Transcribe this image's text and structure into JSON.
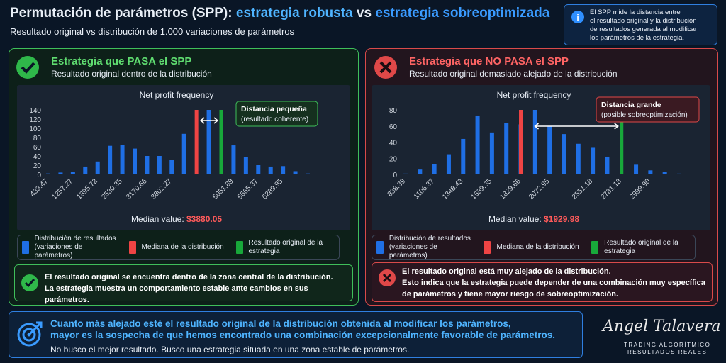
{
  "header": {
    "title_start": "Permutación de parámetros (SPP):",
    "title_robust": "estrategia robusta",
    "title_vs": "vs",
    "title_over": "estrategia sobreoptimizada",
    "subtitle": "Resultado original vs distribución de 1.000 variaciones de parámetros"
  },
  "info": [
    "El SPP mide la distancia entre",
    "el resultado original y la distribución",
    "de resultados generada al modificar",
    "los parámetros de la estrategia."
  ],
  "panels": [
    {
      "title": "Estrategia que PASA el SPP",
      "subtitle": "Resultado original dentro de la distribución",
      "conclusion": [
        [
          "El resultado original se encuentra",
          {
            "text": "dentro",
            "bold": true
          },
          "de la",
          {
            "text": "zona central",
            "bold": true
          },
          "de la distribución."
        ],
        [
          "La estrategia muestra un comportamiento estable ante cambios en sus parámetros."
        ]
      ]
    },
    {
      "title": "Estrategia que NO PASA el SPP",
      "subtitle": "Resultado original demasiado alejado de la distribución",
      "conclusion": [
        [
          "El resultado original está muy alejado de la distribución."
        ],
        [
          "Esto indica que la estrategia puede depender de una combinación muy específica"
        ],
        [
          "de parámetros y tiene mayor",
          {
            "text": "riesgo",
            "bold": true
          },
          "de",
          {
            "text": "sobreoptimización",
            "bold": true
          },
          "."
        ]
      ]
    }
  ],
  "chart_data": [
    {
      "type": "bar",
      "title": "Net profit frequency",
      "categories": [
        "433.47",
        null,
        "1257.27",
        null,
        "1895.72",
        null,
        "2530.35",
        null,
        "3170.66",
        null,
        "3802.27",
        null,
        null,
        null,
        null,
        "5051.89",
        null,
        "5665.37",
        null,
        "6289.95",
        null,
        null
      ],
      "series": [
        {
          "name": "Distribución de resultados (variaciones de parámetros)",
          "color": "#1f6fe5",
          "values": [
            2,
            4,
            5,
            17,
            28,
            62,
            64,
            56,
            40,
            40,
            32,
            88,
            null,
            140,
            null,
            63,
            38,
            20,
            17,
            18,
            7,
            2
          ]
        },
        {
          "name": "Mediana de la distribución",
          "color": "#ef4444",
          "values": [
            null,
            null,
            null,
            null,
            null,
            null,
            null,
            null,
            null,
            null,
            null,
            null,
            140,
            null,
            null,
            null,
            null,
            null,
            null,
            null,
            null,
            null
          ]
        },
        {
          "name": "Resultado original de la estrategia",
          "color": "#18a83a",
          "values": [
            null,
            null,
            null,
            null,
            null,
            null,
            null,
            null,
            null,
            null,
            null,
            null,
            null,
            null,
            140,
            null,
            null,
            null,
            null,
            null,
            null,
            null
          ]
        }
      ],
      "ylim": [
        0,
        140
      ],
      "yticks": [
        0,
        20,
        40,
        60,
        80,
        100,
        120,
        140
      ],
      "median_label": "Median value:",
      "median_value": "$3880.05",
      "annotation": {
        "title": "Distancia pequeña",
        "text": "(resultado coherente)"
      }
    },
    {
      "type": "bar",
      "title": "Net profit frequency",
      "categories": [
        "838.39",
        null,
        "1106.37",
        null,
        "1348.43",
        null,
        "1589.35",
        null,
        "1829.66",
        null,
        "2072.95",
        null,
        null,
        "2551.18",
        null,
        "2781.18",
        null,
        "2999.90",
        null,
        null
      ],
      "series": [
        {
          "name": "Distribución de resultados (variaciones de parámetros)",
          "color": "#1f6fe5",
          "values": [
            1,
            6,
            13,
            25,
            44,
            73,
            52,
            64,
            62,
            80,
            60,
            50,
            38,
            33,
            22,
            null,
            12,
            5,
            3,
            1
          ]
        },
        {
          "name": "Mediana de la distribución",
          "color": "#ef4444",
          "values": [
            null,
            null,
            null,
            null,
            null,
            null,
            null,
            null,
            80,
            null,
            null,
            null,
            null,
            null,
            null,
            null,
            null,
            null,
            null,
            null
          ]
        },
        {
          "name": "Resultado original de la estrategia",
          "color": "#18a83a",
          "values": [
            null,
            null,
            null,
            null,
            null,
            null,
            null,
            null,
            null,
            null,
            null,
            null,
            null,
            null,
            null,
            80,
            null,
            null,
            null,
            null
          ]
        }
      ],
      "ylim": [
        0,
        80
      ],
      "yticks": [
        0,
        20,
        40,
        60,
        80
      ],
      "median_label": "Median value:",
      "median_value": "$1929.98",
      "annotation": {
        "title": "Distancia grande",
        "text": "(posible sobreoptimización)"
      }
    }
  ],
  "footer": {
    "line1": "Cuanto más alejado esté el resultado original de la distribución obtenida al modificar los parámetros,",
    "line2": "mayor es la sospecha de que hemos encontrado una combinación excepcionalmente favorable de parámetros.",
    "line3": "No busco el mejor resultado. Busco una estrategia situada en una zona estable de parámetros."
  },
  "brand": {
    "name": "Angel Talavera",
    "tagline1": "TRADING ALGORÍTMICO",
    "tagline2": "RESULTADOS REALES"
  }
}
